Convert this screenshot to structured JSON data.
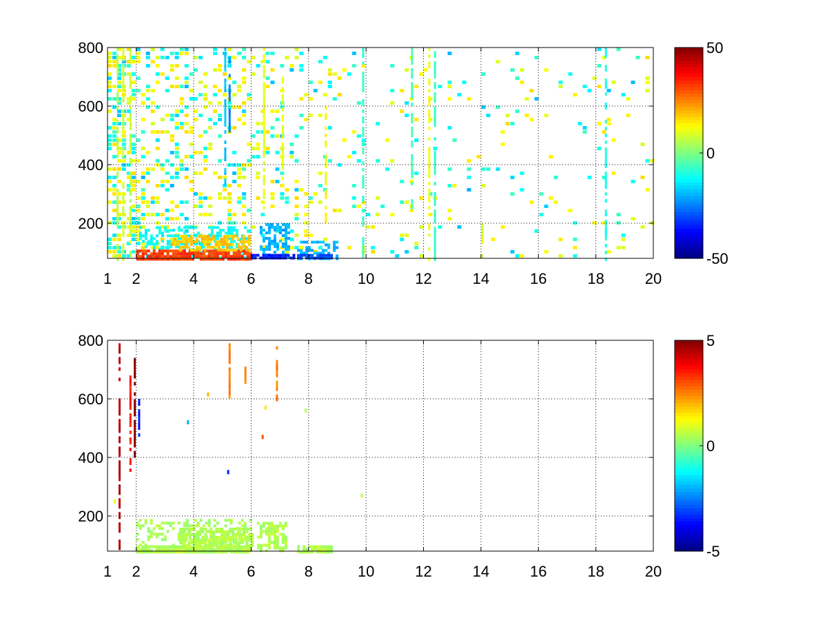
{
  "chart_data": [
    {
      "type": "heatmap",
      "title": "",
      "xlabel": "",
      "ylabel": "",
      "xlim": [
        1,
        20
      ],
      "ylim": [
        80,
        800
      ],
      "xticks": [
        "1",
        "2",
        "4",
        "6",
        "8",
        "10",
        "12",
        "14",
        "16",
        "18",
        "20"
      ],
      "yticks": [
        "200",
        "400",
        "600",
        "800"
      ],
      "grid": true,
      "colormap": "jet",
      "clim": [
        -50,
        50
      ],
      "colorbar_ticks": [
        "50",
        "0",
        "-50"
      ],
      "density": [
        {
          "x0": 1.0,
          "x1": 1.5,
          "p": 0.55
        },
        {
          "x0": 1.5,
          "x1": 2.0,
          "p": 0.45
        },
        {
          "x0": 2.0,
          "x1": 4.0,
          "p": 0.33
        },
        {
          "x0": 4.0,
          "x1": 6.0,
          "p": 0.25
        },
        {
          "x0": 6.0,
          "x1": 8.0,
          "p": 0.16
        },
        {
          "x0": 8.0,
          "x1": 10.0,
          "p": 0.1
        },
        {
          "x0": 10.0,
          "x1": 12.0,
          "p": 0.08
        },
        {
          "x0": 12.0,
          "x1": 20.0,
          "p": 0.06
        }
      ],
      "streaks": [
        {
          "x": 1.35,
          "y0": 80,
          "y1": 800,
          "v": 5
        },
        {
          "x": 1.55,
          "y0": 80,
          "y1": 800,
          "v": 8
        },
        {
          "x": 1.8,
          "y0": 80,
          "y1": 800,
          "v": 6
        },
        {
          "x": 5.1,
          "y0": 330,
          "y1": 800,
          "v": -18
        },
        {
          "x": 5.25,
          "y0": 520,
          "y1": 780,
          "v": -25
        },
        {
          "x": 6.45,
          "y0": 250,
          "y1": 800,
          "v": 10
        },
        {
          "x": 7.1,
          "y0": 300,
          "y1": 700,
          "v": 10
        },
        {
          "x": 8.6,
          "y0": 200,
          "y1": 600,
          "v": 12
        },
        {
          "x": 9.9,
          "y0": 80,
          "y1": 800,
          "v": -8
        },
        {
          "x": 11.6,
          "y0": 250,
          "y1": 800,
          "v": -6
        },
        {
          "x": 12.2,
          "y0": 80,
          "y1": 800,
          "v": 12
        },
        {
          "x": 12.4,
          "y0": 80,
          "y1": 800,
          "v": -8
        },
        {
          "x": 14.05,
          "y0": 90,
          "y1": 200,
          "v": 10
        },
        {
          "x": 18.35,
          "y0": 80,
          "y1": 800,
          "v": -10
        }
      ],
      "regions": [
        {
          "x0": 2.1,
          "x1": 5.9,
          "y0": 80,
          "y1": 190,
          "v": -12,
          "p": 0.45
        },
        {
          "x0": 2.0,
          "x1": 6.0,
          "y0": 80,
          "y1": 110,
          "v": 32,
          "p": 0.9
        },
        {
          "x0": 3.2,
          "x1": 5.9,
          "y0": 110,
          "y1": 160,
          "v": 18,
          "p": 0.6
        },
        {
          "x0": 6.3,
          "x1": 7.3,
          "y0": 80,
          "y1": 200,
          "v": -20,
          "p": 0.55
        },
        {
          "x0": 6.0,
          "x1": 7.5,
          "y0": 80,
          "y1": 95,
          "v": -35,
          "p": 0.9
        },
        {
          "x0": 7.6,
          "x1": 9.0,
          "y0": 80,
          "y1": 140,
          "v": -20,
          "p": 0.5
        },
        {
          "x0": 7.6,
          "x1": 8.8,
          "y0": 80,
          "y1": 95,
          "v": -30,
          "p": 0.9
        }
      ]
    },
    {
      "type": "heatmap",
      "title": "",
      "xlabel": "",
      "ylabel": "",
      "xlim": [
        1,
        20
      ],
      "ylim": [
        80,
        800
      ],
      "xticks": [
        "1",
        "2",
        "4",
        "6",
        "8",
        "10",
        "12",
        "14",
        "16",
        "18",
        "20"
      ],
      "yticks": [
        "200",
        "400",
        "600",
        "800"
      ],
      "grid": true,
      "colormap": "jet",
      "clim": [
        -5,
        5
      ],
      "colorbar_ticks": [
        "5",
        "0",
        "-5"
      ],
      "streaks": [
        {
          "x": 1.42,
          "y0": 80,
          "y1": 790,
          "v": 4.5
        },
        {
          "x": 1.8,
          "y0": 360,
          "y1": 680,
          "v": 3.5
        },
        {
          "x": 1.95,
          "y0": 400,
          "y1": 740,
          "v": 4.8
        },
        {
          "x": 2.1,
          "y0": 450,
          "y1": 600,
          "v": -3.5
        },
        {
          "x": 5.25,
          "y0": 610,
          "y1": 790,
          "v": 2.5
        },
        {
          "x": 5.8,
          "y0": 650,
          "y1": 710,
          "v": 2.5
        },
        {
          "x": 6.9,
          "y0": 600,
          "y1": 780,
          "v": 2.5
        }
      ],
      "regions": [
        {
          "x0": 2.0,
          "x1": 6.0,
          "y0": 80,
          "y1": 190,
          "v": 0.4,
          "p": 0.35
        },
        {
          "x0": 2.0,
          "x1": 6.0,
          "y0": 80,
          "y1": 100,
          "v": 0.5,
          "p": 0.95
        },
        {
          "x0": 3.5,
          "x1": 6.0,
          "y0": 100,
          "y1": 160,
          "v": 0.5,
          "p": 0.75
        },
        {
          "x0": 6.2,
          "x1": 7.2,
          "y0": 80,
          "y1": 180,
          "v": 0.5,
          "p": 0.6
        },
        {
          "x0": 7.6,
          "x1": 8.8,
          "y0": 80,
          "y1": 100,
          "v": 0.5,
          "p": 0.8
        }
      ],
      "points": [
        {
          "x": 1.25,
          "y": 250,
          "v": 1.0
        },
        {
          "x": 3.8,
          "y": 520,
          "v": -2.0
        },
        {
          "x": 4.5,
          "y": 615,
          "v": 2.0
        },
        {
          "x": 5.2,
          "y": 350,
          "v": -3.5
        },
        {
          "x": 6.4,
          "y": 470,
          "v": 3.0
        },
        {
          "x": 6.5,
          "y": 570,
          "v": 1.5
        },
        {
          "x": 7.9,
          "y": 560,
          "v": 0.5
        },
        {
          "x": 9.85,
          "y": 270,
          "v": 0.5
        }
      ]
    }
  ]
}
